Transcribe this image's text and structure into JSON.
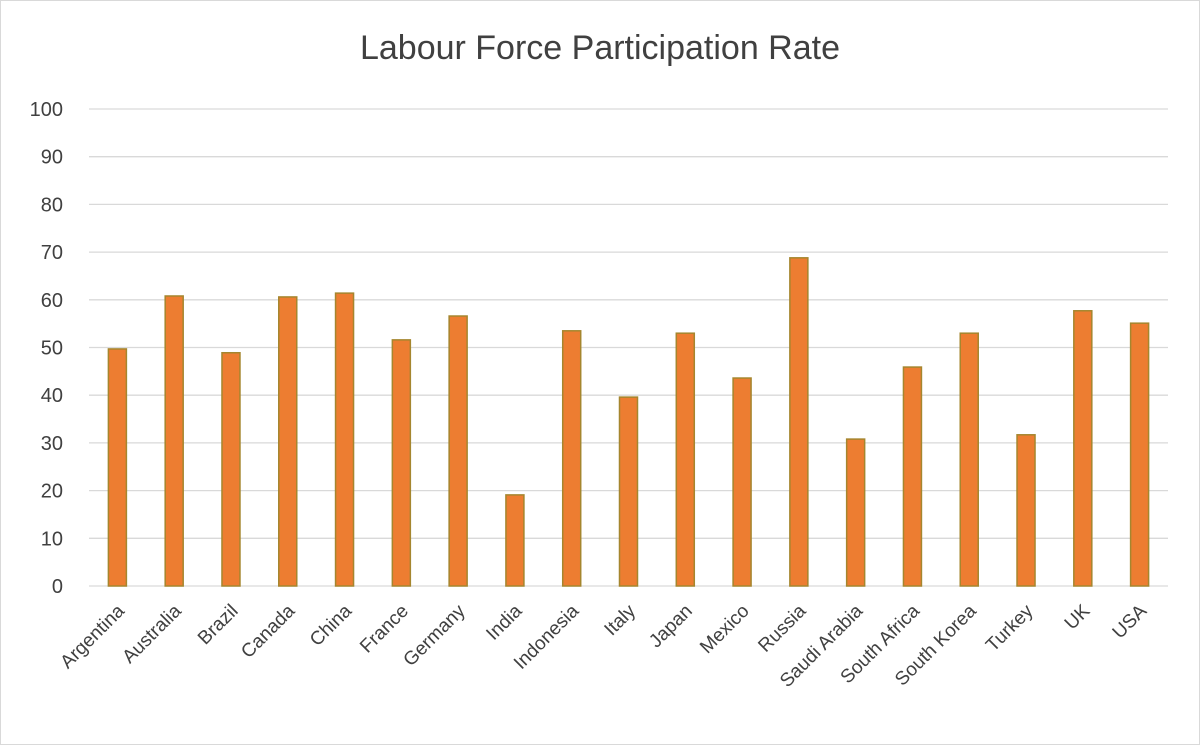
{
  "chart_data": {
    "type": "bar",
    "title": "Labour Force Participation Rate",
    "xlabel": "",
    "ylabel": "",
    "ylim": [
      0,
      100
    ],
    "yticks": [
      0,
      10,
      20,
      30,
      40,
      50,
      60,
      70,
      80,
      90,
      100
    ],
    "grid": true,
    "bar_color": "#ED7D31",
    "bar_border_color": "#A5862E",
    "categories": [
      "Argentina",
      "Australia",
      "Brazil",
      "Canada",
      "China",
      "France",
      "Germany",
      "India",
      "Indonesia",
      "Italy",
      "Japan",
      "Mexico",
      "Russia",
      "Saudi Arabia",
      "South Africa",
      "South Korea",
      "Turkey",
      "UK",
      "USA"
    ],
    "values": [
      49.7,
      60.8,
      48.9,
      60.6,
      61.4,
      51.6,
      56.6,
      19.1,
      53.5,
      39.6,
      53.0,
      43.6,
      68.8,
      30.8,
      45.9,
      53.0,
      31.7,
      57.7,
      55.1
    ]
  }
}
